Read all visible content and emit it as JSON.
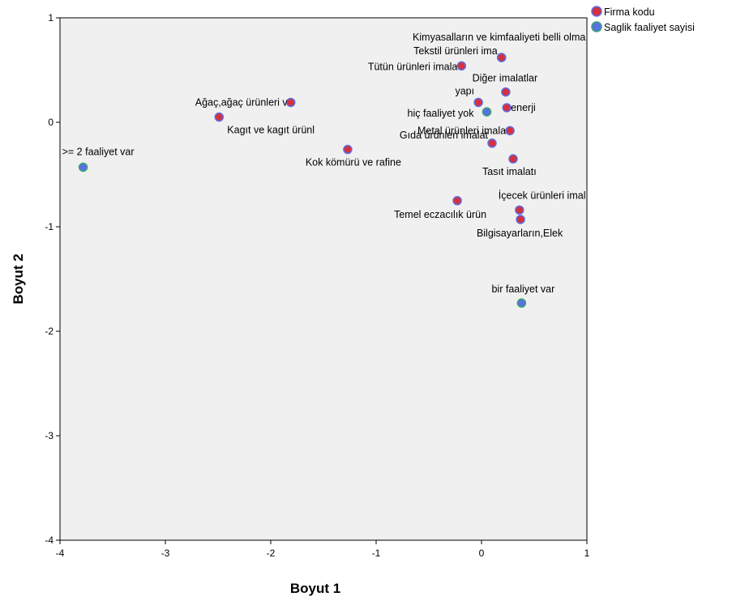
{
  "chart_data": {
    "type": "scatter",
    "title": "",
    "xlabel": "Boyut 1",
    "ylabel": "Boyut 2",
    "xlim": [
      -4,
      1
    ],
    "ylim": [
      -4,
      1
    ],
    "x_ticks": [
      "-4",
      "-3",
      "-2",
      "-1",
      "0",
      "1"
    ],
    "y_ticks": [
      "-4",
      "-3",
      "-2",
      "-1",
      "0",
      "1"
    ],
    "grid": false,
    "legend_position": "top-right",
    "series": [
      {
        "name": "Firma kodu",
        "fill": "#d6303f",
        "stroke": "#5b6ee6",
        "points": [
          {
            "label": "Kimyasalların ve kimfaaliyeti belli olma",
            "x": 0.19,
            "y": 0.62
          },
          {
            "label": "Tekstil ürünleri ima",
            "x": 0.19,
            "y": 0.62
          },
          {
            "label": "Tütün ürünleri imala",
            "x": -0.19,
            "y": 0.54
          },
          {
            "label": "Diğer imalatlar",
            "x": 0.23,
            "y": 0.29
          },
          {
            "label": "yapı",
            "x": -0.03,
            "y": 0.19
          },
          {
            "label": "enerji",
            "x": 0.24,
            "y": 0.14
          },
          {
            "label": "Ağaç,ağaç ürünleri v",
            "x": -1.81,
            "y": 0.19
          },
          {
            "label": "Kagıt ve kagıt ürünl",
            "x": -2.49,
            "y": 0.05
          },
          {
            "label": "Metal ürünleri imala",
            "x": 0.27,
            "y": -0.08
          },
          {
            "label": "Kok kömürü ve rafine",
            "x": -1.27,
            "y": -0.26
          },
          {
            "label": "Gıda ürünleri imalat",
            "x": 0.1,
            "y": -0.2
          },
          {
            "label": "Tasıt imalatı",
            "x": 0.3,
            "y": -0.35
          },
          {
            "label": "İçecek ürünleri imal",
            "x": 0.36,
            "y": -0.84
          },
          {
            "label": "Temel eczacılık ürün",
            "x": -0.23,
            "y": -0.75
          },
          {
            "label": "Bilgisayarların,Elek",
            "x": 0.37,
            "y": -0.93
          }
        ]
      },
      {
        "name": "Saglik faaliyet sayisi",
        "fill": "#5b6ee6",
        "stroke": "#36a86a",
        "points": [
          {
            "label": ">= 2 faaliyet var",
            "x": -3.78,
            "y": -0.43
          },
          {
            "label": "hiç faaliyet yok",
            "x": 0.05,
            "y": 0.1
          },
          {
            "label": "bir faaliyet var",
            "x": 0.38,
            "y": -1.73
          }
        ]
      }
    ]
  }
}
